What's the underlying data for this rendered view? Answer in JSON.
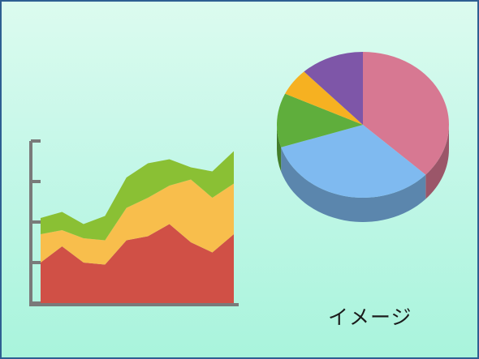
{
  "caption": "イメージ",
  "colors": {
    "background": "#c4f7e8",
    "border": "#2e5f92",
    "axis": "#7a7a7a"
  },
  "chart_data": [
    {
      "type": "area",
      "stacked": true,
      "title": "",
      "xlabel": "",
      "ylabel": "",
      "ylim": [
        0,
        4
      ],
      "y_ticks": [
        0,
        1,
        2,
        3,
        4
      ],
      "tick_labels_shown": false,
      "x": [
        1,
        2,
        3,
        4,
        5,
        6,
        7,
        8,
        9,
        10
      ],
      "series": [
        {
          "color": "#d05046",
          "values": [
            1.0,
            1.4,
            1.0,
            0.95,
            1.55,
            1.65,
            1.95,
            1.5,
            1.25,
            1.7
          ]
        },
        {
          "color": "#f8be4c",
          "values": [
            0.7,
            0.4,
            0.6,
            0.6,
            0.8,
            0.95,
            0.95,
            1.55,
            1.35,
            1.25
          ]
        },
        {
          "color": "#8ac034",
          "values": [
            0.4,
            0.45,
            0.35,
            0.6,
            0.75,
            0.85,
            0.65,
            0.3,
            0.65,
            0.8
          ]
        }
      ],
      "grid": false,
      "legend": "none"
    },
    {
      "type": "pie",
      "style": "3d",
      "title": "",
      "slices": [
        {
          "value": 37,
          "color": "#d77892"
        },
        {
          "value": 33,
          "color": "#7fbaf0"
        },
        {
          "value": 12,
          "color": "#5fae3c"
        },
        {
          "value": 6,
          "color": "#f6b121"
        },
        {
          "value": 12,
          "color": "#7e56a8"
        }
      ],
      "legend": "none"
    }
  ]
}
